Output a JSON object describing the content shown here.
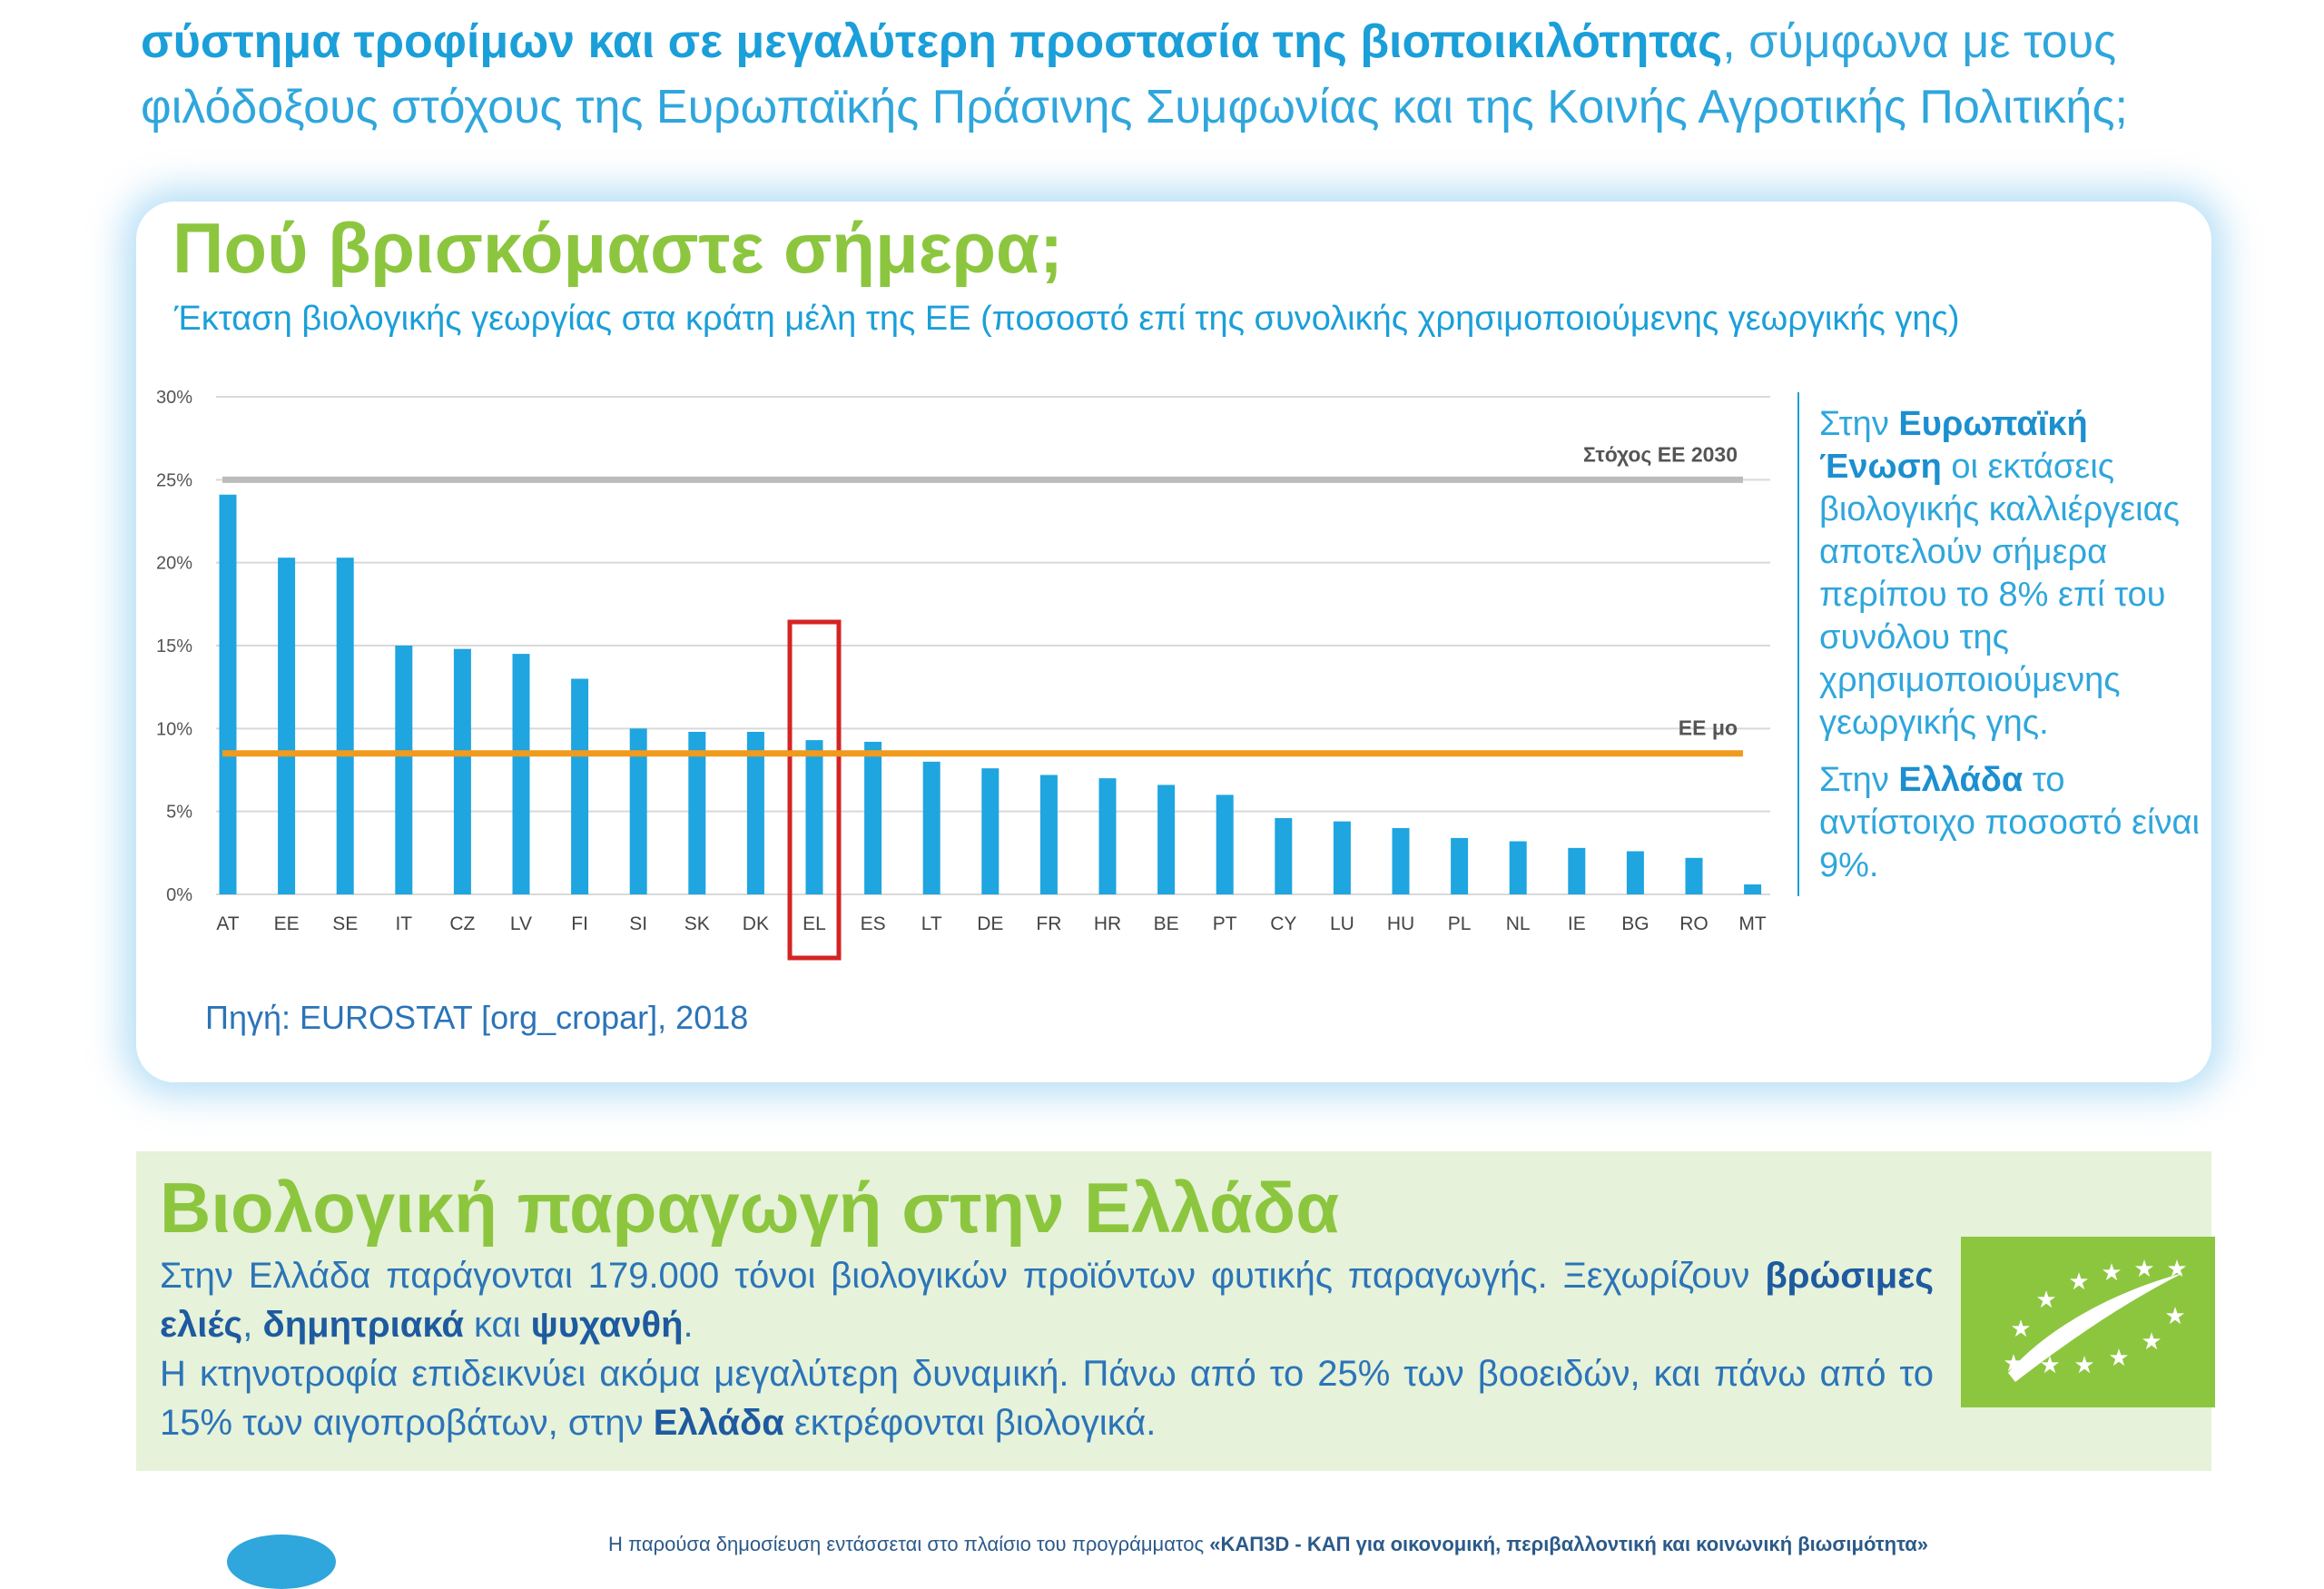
{
  "intro": {
    "line1_bold": "σύστημα τροφίμων και σε μεγαλύτερη προστασία της βιοποικιλότητας",
    "line1_rest": ", σύμφωνα με τους",
    "line2": "φιλόδοξους στόχους της Ευρωπαϊκής Πράσινης Συμφωνίας και της Κοινής Αγροτικής Πολιτικής;"
  },
  "card": {
    "title": "Πού βρισκόμαστε σήμερα;",
    "subtitle": "Έκταση βιολογικής γεωργίας στα κράτη μέλη της ΕΕ (ποσοστό επί της συνολικής χρησιμοποιούμενης γεωργικής γης)",
    "source": "Πηγή: EUROSTAT [org_cropar], 2018"
  },
  "chart_data": {
    "type": "bar",
    "title": "Έκταση βιολογικής γεωργίας στα κράτη μέλη της ΕΕ (ποσοστό επί της συνολικής χρησιμοποιούμενης γεωργικής γης)",
    "categories": [
      "AT",
      "EE",
      "SE",
      "IT",
      "CZ",
      "LV",
      "FI",
      "SI",
      "SK",
      "DK",
      "EL",
      "ES",
      "LT",
      "DE",
      "FR",
      "HR",
      "BE",
      "PT",
      "CY",
      "LU",
      "HU",
      "PL",
      "NL",
      "IE",
      "BG",
      "RO",
      "MT"
    ],
    "values": [
      24.1,
      20.3,
      20.3,
      15.0,
      14.8,
      14.5,
      13.0,
      10.0,
      9.8,
      9.8,
      9.3,
      9.2,
      8.0,
      7.6,
      7.2,
      7.0,
      6.6,
      6.0,
      4.6,
      4.4,
      4.0,
      3.4,
      3.2,
      2.8,
      2.6,
      2.2,
      0.6
    ],
    "yticks": [
      "0%",
      "5%",
      "10%",
      "15%",
      "20%",
      "25%",
      "30%"
    ],
    "ylim": [
      0,
      30
    ],
    "grid": true,
    "bar_color": "#1fa5e0",
    "highlight_category": "EL",
    "highlight_color": "#d42424",
    "reference_lines": [
      {
        "label": "Στόχος ΕΕ 2030",
        "value": 25,
        "color": "#bcbcbc"
      },
      {
        "label": "ΕΕ μο",
        "value": 8.5,
        "color": "#f09a1e"
      }
    ]
  },
  "sidebar": {
    "p1_pre": "Στην ",
    "p1_bold": "Ευρωπαϊκή Ένωση",
    "p1_rest": " οι εκτάσεις βιολογικής καλλιέργειας αποτελούν σήμερα περίπου το 8% επί του συνόλου της χρησιμοποιούμενης γεωργικής γης.",
    "p2_pre": "Στην ",
    "p2_bold": "Ελλάδα",
    "p2_rest": " το αντίστοιχο ποσοστό είναι 9%."
  },
  "greece": {
    "title": "Βιολογική παραγωγή στην Ελλάδα",
    "t1": "Στην Ελλάδα παράγονται 179.000 τόνοι βιολογικών προϊόντων φυτικής παραγωγής. Ξεχωρίζουν ",
    "b1": "βρώσιμες ελιές",
    "t2": ", ",
    "b2": "δημητριακά",
    "t3": " και ",
    "b3": "ψυχανθή",
    "t4": ".",
    "t5": "Η κτηνοτροφία επιδεικνύει ακόμα μεγαλύτερη δυναμική. Πάνω από το 25% των βοοειδών, και πάνω από το 15% των αιγοπροβάτων, στην ",
    "b4": "Ελλάδα",
    "t6": " εκτρέφονται βιολογικά."
  },
  "footer": {
    "text": "Η παρούσα δημοσίευση εντάσσεται στο πλαίσιο του προγράμματος ",
    "bold": "«ΚΑΠ3D - ΚΑΠ για οικονομική, περιβαλλοντική και κοινωνική βιωσιμότητα»"
  },
  "colors": {
    "accent_blue": "#1b9fd9",
    "accent_green": "#8cc63f",
    "light_green_bg": "#e6f2d9"
  },
  "icons": [
    "eu-organic-leaf-logo"
  ]
}
